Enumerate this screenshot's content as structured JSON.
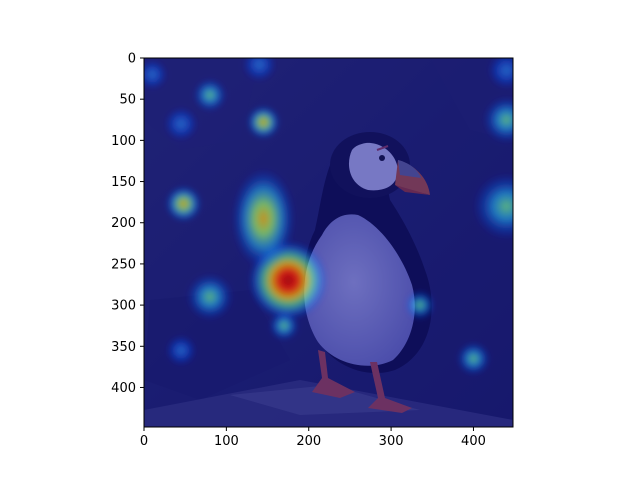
{
  "figure": {
    "kind": "heatmap overlay on photograph",
    "subject": "puffin standing on rock",
    "colormap": "jet",
    "background_color": "#ffffff",
    "frame_color": "#000000"
  },
  "chart_data": {
    "type": "heatmap",
    "title": "",
    "xlabel": "",
    "ylabel": "",
    "xlim": [
      0,
      448
    ],
    "ylim": [
      448,
      0
    ],
    "x_ticks": [
      "0",
      "100",
      "200",
      "300",
      "400"
    ],
    "y_ticks": [
      "0",
      "50",
      "100",
      "150",
      "200",
      "250",
      "300",
      "350",
      "400"
    ],
    "grid": false,
    "hotspots": [
      {
        "x": 175,
        "y": 270,
        "r": 48,
        "level": 1.0
      },
      {
        "x": 145,
        "y": 195,
        "r": 38,
        "level": 0.75
      },
      {
        "x": 48,
        "y": 177,
        "r": 22,
        "level": 0.85
      },
      {
        "x": 145,
        "y": 78,
        "r": 20,
        "level": 0.7
      },
      {
        "x": 80,
        "y": 45,
        "r": 20,
        "level": 0.6
      },
      {
        "x": 140,
        "y": 8,
        "r": 20,
        "level": 0.5
      },
      {
        "x": 80,
        "y": 290,
        "r": 28,
        "level": 0.6
      },
      {
        "x": 440,
        "y": 180,
        "r": 40,
        "level": 0.65
      },
      {
        "x": 440,
        "y": 75,
        "r": 28,
        "level": 0.6
      },
      {
        "x": 440,
        "y": 15,
        "r": 22,
        "level": 0.5
      },
      {
        "x": 400,
        "y": 365,
        "r": 20,
        "level": 0.65
      },
      {
        "x": 335,
        "y": 300,
        "r": 18,
        "level": 0.55
      },
      {
        "x": 45,
        "y": 80,
        "r": 20,
        "level": 0.45
      },
      {
        "x": 45,
        "y": 355,
        "r": 18,
        "level": 0.4
      },
      {
        "x": 170,
        "y": 325,
        "r": 18,
        "level": 0.55
      },
      {
        "x": 10,
        "y": 20,
        "r": 18,
        "level": 0.45
      }
    ]
  }
}
